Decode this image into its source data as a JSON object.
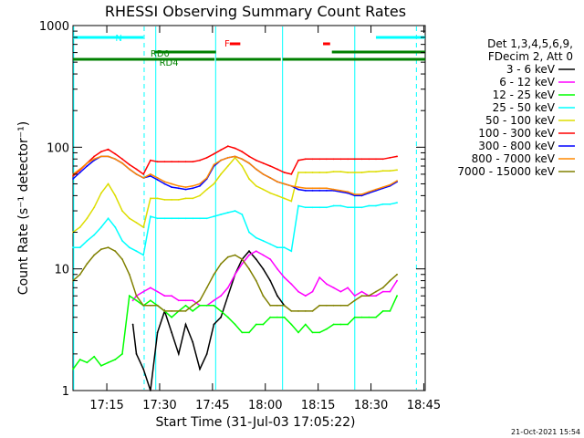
{
  "chart_data": {
    "type": "line",
    "title": "RHESSI Observing Summary Count Rates",
    "xlabel": "Start Time (31-Jul-03 17:05:22)",
    "ylabel": "Count Rate (s⁻¹ detector⁻¹)",
    "ylog": true,
    "ylim": [
      1,
      1000
    ],
    "xlim": [
      0,
      100
    ],
    "x_ticks": [
      {
        "label": "17:15",
        "t": 9.6
      },
      {
        "label": "17:30",
        "t": 24.6
      },
      {
        "label": "17:45",
        "t": 39.6
      },
      {
        "label": "18:00",
        "t": 54.6
      },
      {
        "label": "18:15",
        "t": 69.6
      },
      {
        "label": "18:30",
        "t": 84.6
      },
      {
        "label": "18:45",
        "t": 99.6
      }
    ],
    "y_ticks": [
      {
        "label": "1",
        "v": 1
      },
      {
        "label": "10",
        "v": 10
      },
      {
        "label": "100",
        "v": 100
      },
      {
        "label": "1000",
        "v": 1000
      }
    ],
    "legend_header": [
      "Det 1,3,4,5,6,9,",
      "FDecim 2, Att 0"
    ],
    "series": [
      {
        "name": "3 - 6 keV",
        "color": "#000000",
        "x": [
          17,
          18,
          20,
          22,
          24,
          26,
          28,
          30,
          32,
          34,
          36,
          38,
          40,
          42,
          44,
          46,
          48,
          50,
          52,
          54,
          56,
          58,
          60
        ],
        "y": [
          3.5,
          2.0,
          1.5,
          1.0,
          3.0,
          4.5,
          3.0,
          2.0,
          3.5,
          2.5,
          1.5,
          2.0,
          3.5,
          4.0,
          6.0,
          9.0,
          12.0,
          14.0,
          12.0,
          10.0,
          8.0,
          6.0,
          5.0
        ]
      },
      {
        "name": "6 - 12 keV",
        "color": "#ff00ff",
        "x": [
          17,
          18,
          20,
          22,
          24,
          26,
          28,
          30,
          32,
          34,
          36,
          38,
          40,
          42,
          44,
          46,
          48,
          50,
          52,
          54,
          56,
          58,
          60,
          62,
          64,
          66,
          68,
          70,
          72,
          74,
          76,
          78,
          80,
          82,
          84,
          86,
          88,
          90,
          92
        ],
        "y": [
          5.5,
          6.0,
          6.5,
          7.0,
          6.5,
          6.0,
          6.0,
          5.5,
          5.5,
          5.5,
          5.0,
          5.0,
          5.5,
          6.0,
          7.0,
          9.0,
          11.0,
          13.0,
          14.0,
          13.0,
          12.0,
          10.0,
          8.5,
          7.5,
          6.5,
          6.0,
          6.5,
          8.5,
          7.5,
          7.0,
          6.5,
          7.0,
          6.0,
          6.5,
          6.0,
          6.0,
          6.5,
          6.5,
          8.0
        ]
      },
      {
        "name": "12 - 25 keV",
        "color": "#00ff00",
        "x": [
          0,
          2,
          4,
          6,
          8,
          10,
          12,
          14,
          16,
          18,
          20,
          22,
          24,
          26,
          28,
          30,
          32,
          34,
          36,
          38,
          40,
          42,
          44,
          46,
          48,
          50,
          52,
          54,
          56,
          58,
          60,
          62,
          64,
          66,
          68,
          70,
          72,
          74,
          76,
          78,
          80,
          82,
          84,
          86,
          88,
          90,
          92
        ],
        "y": [
          1.5,
          1.8,
          1.7,
          1.9,
          1.6,
          1.7,
          1.8,
          2.0,
          6.0,
          5.5,
          5.0,
          5.5,
          5.0,
          4.5,
          4.0,
          4.5,
          5.0,
          4.5,
          5.0,
          5.0,
          5.0,
          4.5,
          4.0,
          3.5,
          3.0,
          3.0,
          3.5,
          3.5,
          4.0,
          4.0,
          4.0,
          3.5,
          3.0,
          3.5,
          3.0,
          3.0,
          3.2,
          3.5,
          3.5,
          3.5,
          4.0,
          4.0,
          4.0,
          4.0,
          4.5,
          4.5,
          6.0
        ]
      },
      {
        "name": "25 - 50 keV",
        "color": "#00ffff",
        "x": [
          0,
          2,
          4,
          6,
          8,
          10,
          12,
          14,
          16,
          18,
          20,
          22,
          24,
          26,
          28,
          30,
          32,
          34,
          36,
          38,
          40,
          42,
          44,
          46,
          48,
          50,
          52,
          54,
          56,
          58,
          60,
          62,
          64,
          66,
          68,
          70,
          72,
          74,
          76,
          78,
          80,
          82,
          84,
          86,
          88,
          90,
          92
        ],
        "y": [
          15,
          15,
          17,
          19,
          22,
          26,
          22,
          17,
          15,
          14,
          13,
          27,
          26,
          26,
          26,
          26,
          26,
          26,
          26,
          26,
          27,
          28,
          29,
          30,
          28,
          20,
          18,
          17,
          16,
          15,
          15,
          14,
          33,
          32,
          32,
          32,
          32,
          33,
          33,
          32,
          32,
          32,
          33,
          33,
          34,
          34,
          35
        ]
      },
      {
        "name": "50 - 100 keV",
        "color": "#dddd00",
        "x": [
          0,
          2,
          4,
          6,
          8,
          10,
          12,
          14,
          16,
          18,
          20,
          22,
          24,
          26,
          28,
          30,
          32,
          34,
          36,
          38,
          40,
          42,
          44,
          46,
          48,
          50,
          52,
          54,
          56,
          58,
          60,
          62,
          64,
          66,
          68,
          70,
          72,
          74,
          76,
          78,
          80,
          82,
          84,
          86,
          88,
          90,
          92
        ],
        "y": [
          20,
          22,
          26,
          32,
          42,
          50,
          40,
          30,
          26,
          24,
          22,
          38,
          38,
          37,
          37,
          37,
          38,
          38,
          40,
          45,
          50,
          60,
          70,
          82,
          70,
          55,
          48,
          45,
          42,
          40,
          38,
          36,
          62,
          62,
          62,
          62,
          62,
          63,
          63,
          62,
          62,
          62,
          63,
          63,
          64,
          64,
          65
        ]
      },
      {
        "name": "100 - 300 keV",
        "color": "#ff0000",
        "x": [
          0,
          2,
          4,
          6,
          8,
          10,
          12,
          14,
          16,
          18,
          20,
          22,
          24,
          26,
          28,
          30,
          32,
          34,
          36,
          38,
          40,
          42,
          44,
          46,
          48,
          50,
          52,
          54,
          56,
          58,
          60,
          62,
          64,
          66,
          68,
          70,
          72,
          74,
          76,
          78,
          80,
          82,
          84,
          86,
          88,
          90,
          92
        ],
        "y": [
          58,
          65,
          74,
          84,
          92,
          96,
          88,
          80,
          72,
          66,
          60,
          78,
          76,
          76,
          76,
          76,
          76,
          76,
          78,
          82,
          88,
          95,
          102,
          98,
          92,
          84,
          78,
          74,
          70,
          66,
          62,
          60,
          78,
          80,
          80,
          80,
          80,
          80,
          80,
          80,
          80,
          80,
          80,
          80,
          80,
          82,
          84
        ]
      },
      {
        "name": "300 - 800 keV",
        "color": "#0000ff",
        "x": [
          0,
          2,
          4,
          6,
          8,
          10,
          12,
          14,
          16,
          18,
          20,
          22,
          24,
          26,
          28,
          30,
          32,
          34,
          36,
          38,
          40,
          42,
          44,
          46,
          48,
          50,
          52,
          54,
          56,
          58,
          60,
          62,
          64,
          66,
          68,
          70,
          72,
          74,
          76,
          78,
          80,
          82,
          84,
          86,
          88,
          90,
          92
        ],
        "y": [
          55,
          62,
          70,
          78,
          84,
          84,
          80,
          74,
          66,
          60,
          56,
          58,
          54,
          50,
          47,
          46,
          45,
          46,
          48,
          55,
          70,
          78,
          82,
          84,
          80,
          74,
          66,
          60,
          56,
          52,
          50,
          48,
          45,
          44,
          44,
          44,
          44,
          44,
          43,
          42,
          40,
          40,
          42,
          44,
          46,
          48,
          52
        ]
      },
      {
        "name": "800 - 7000 keV",
        "color": "#ff8800",
        "x": [
          0,
          2,
          4,
          6,
          8,
          10,
          12,
          14,
          16,
          18,
          20,
          22,
          24,
          26,
          28,
          30,
          32,
          34,
          36,
          38,
          40,
          42,
          44,
          46,
          48,
          50,
          52,
          54,
          56,
          58,
          60,
          62,
          64,
          66,
          68,
          70,
          72,
          74,
          76,
          78,
          80,
          82,
          84,
          86,
          88,
          90,
          92
        ],
        "y": [
          60,
          66,
          74,
          80,
          84,
          84,
          80,
          74,
          66,
          60,
          56,
          60,
          56,
          52,
          50,
          48,
          47,
          48,
          50,
          56,
          72,
          78,
          82,
          84,
          80,
          74,
          66,
          60,
          56,
          52,
          50,
          48,
          47,
          46,
          46,
          46,
          46,
          45,
          44,
          43,
          41,
          41,
          43,
          45,
          47,
          49,
          53
        ]
      },
      {
        "name": "7000 - 15000 keV",
        "color": "#808000",
        "x": [
          0,
          2,
          4,
          6,
          8,
          10,
          12,
          14,
          16,
          18,
          20,
          22,
          24,
          26,
          28,
          30,
          32,
          34,
          36,
          38,
          40,
          42,
          44,
          46,
          48,
          50,
          52,
          54,
          56,
          58,
          60,
          62,
          64,
          66,
          68,
          70,
          72,
          74,
          76,
          78,
          80,
          82,
          84,
          86,
          88,
          90,
          92
        ],
        "y": [
          8,
          9,
          11,
          13,
          14.5,
          15,
          14,
          12,
          9,
          6,
          5,
          5,
          5,
          4.5,
          4.5,
          4.5,
          4.5,
          5,
          5.5,
          7,
          9,
          11,
          12.5,
          13,
          12,
          10,
          8,
          6,
          5,
          5,
          5,
          4.5,
          4.5,
          4.5,
          4.5,
          5,
          5,
          5,
          5,
          5,
          5.5,
          6,
          6,
          6.5,
          7,
          8,
          9
        ]
      }
    ],
    "status_bars": [
      {
        "label": "N",
        "color": "#00ffff",
        "segments": [
          [
            0,
            20
          ],
          [
            86,
            100
          ]
        ]
      },
      {
        "label": "F",
        "color": "#ff0000",
        "segments": [
          [
            44.5,
            47.5
          ],
          [
            71,
            73
          ]
        ]
      },
      {
        "label": "RD0",
        "color": "#008000",
        "segments": [
          [
            23,
            40.6
          ],
          [
            73.5,
            100
          ]
        ]
      },
      {
        "label": "RD4",
        "color": "#008000",
        "segments": [
          [
            0,
            40.2
          ],
          [
            40.6,
            59
          ],
          [
            59.5,
            100
          ]
        ]
      }
    ],
    "vertical_markers": [
      {
        "t": 0.2,
        "style": "solid"
      },
      {
        "t": 20.2,
        "style": "dashed"
      },
      {
        "t": 23.5,
        "style": "solid"
      },
      {
        "t": 40.5,
        "style": "solid"
      },
      {
        "t": 59.5,
        "style": "solid"
      },
      {
        "t": 80.0,
        "style": "solid"
      },
      {
        "t": 97.5,
        "style": "dashed"
      }
    ],
    "grid": false,
    "legend_position": "right"
  },
  "footer_timestamp": "21-Oct-2021 15:54"
}
